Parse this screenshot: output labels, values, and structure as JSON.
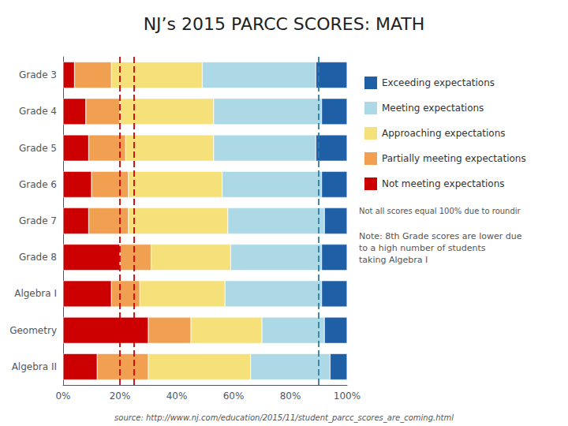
{
  "chart_data": {
    "type": "bar",
    "orientation": "horizontal",
    "stacked": true,
    "title": "NJ’s 2015 PARCC SCORES: MATH",
    "categories": [
      "Grade 3",
      "Grade 4",
      "Grade 5",
      "Grade 6",
      "Grade 7",
      "Grade 8",
      "Algebra I",
      "Geometry",
      "Algebra II"
    ],
    "series": [
      {
        "name": "Not meeting expectations",
        "color": "#cc0000",
        "values": [
          4,
          8,
          9,
          10,
          9,
          20,
          17,
          30,
          12
        ]
      },
      {
        "name": "Partially meeting expectations",
        "color": "#f0a050",
        "values": [
          13,
          12,
          13,
          13,
          14,
          11,
          10,
          15,
          18
        ]
      },
      {
        "name": "Approaching expectations",
        "color": "#f5e07a",
        "values": [
          32,
          33,
          31,
          33,
          35,
          28,
          30,
          25,
          36
        ]
      },
      {
        "name": "Meeting expectations",
        "color": "#add8e6",
        "values": [
          40,
          38,
          36,
          35,
          34,
          32,
          34,
          22,
          28
        ]
      },
      {
        "name": "Exceeding expectations",
        "color": "#1f5fa6",
        "values": [
          11,
          9,
          11,
          9,
          8,
          9,
          9,
          8,
          6
        ]
      }
    ],
    "xlim": [
      0,
      100
    ],
    "xticks": [
      {
        "value": 0,
        "label": "0%"
      },
      {
        "value": 20,
        "label": "20%"
      },
      {
        "value": 40,
        "label": "40%"
      },
      {
        "value": 60,
        "label": "60%"
      },
      {
        "value": 80,
        "label": "80%"
      },
      {
        "value": 100,
        "label": "100%"
      }
    ],
    "grid": false,
    "legend": "right",
    "reference_lines": [
      {
        "x": 20,
        "color": "#cc0000",
        "line_style": "dashed"
      },
      {
        "x": 25,
        "color": "#cc0000",
        "line_style": "dashed"
      },
      {
        "x": 90,
        "color": "#2e7da3",
        "line_style": "dashed"
      }
    ],
    "annotations": [
      "Not all scores equal 100% due to roundir",
      "Note: 8th Grade scores are lower due\nto a high number of students\ntaking Algebra I"
    ],
    "source": "source: http://www.nj.com/education/2015/11/student_parcc_scores_are_coming.html"
  }
}
